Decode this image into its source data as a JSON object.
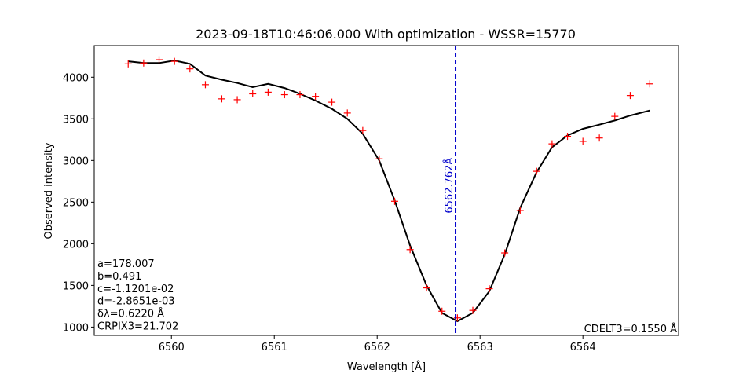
{
  "chart_data": {
    "type": "line",
    "title": "2023-09-18T10:46:06.000 With optimization - WSSR=15770",
    "xlabel": "Wavelength [Å]",
    "ylabel": "Observed intensity",
    "xlim": [
      6559.25,
      6564.93
    ],
    "ylim": [
      900,
      4380
    ],
    "x_ticks": [
      6560,
      6561,
      6562,
      6563,
      6564
    ],
    "y_ticks": [
      1000,
      1500,
      2000,
      2500,
      3000,
      3500,
      4000
    ],
    "grid": false,
    "series": [
      {
        "kind": "line",
        "color": "#000000",
        "x": [
          6559.58,
          6559.73,
          6559.88,
          6560.03,
          6560.18,
          6560.33,
          6560.49,
          6560.64,
          6560.79,
          6560.94,
          6561.1,
          6561.25,
          6561.4,
          6561.56,
          6561.71,
          6561.86,
          6562.02,
          6562.17,
          6562.32,
          6562.48,
          6562.63,
          6562.78,
          6562.93,
          6563.09,
          6563.24,
          6563.39,
          6563.55,
          6563.7,
          6563.85,
          6564.0,
          6564.16,
          6564.31,
          6564.46,
          6564.65
        ],
        "y": [
          4190,
          4170,
          4170,
          4200,
          4160,
          4020,
          3970,
          3930,
          3880,
          3920,
          3870,
          3800,
          3720,
          3620,
          3500,
          3320,
          3000,
          2520,
          1980,
          1500,
          1170,
          1070,
          1170,
          1430,
          1870,
          2430,
          2860,
          3160,
          3300,
          3380,
          3430,
          3480,
          3540,
          3600
        ]
      },
      {
        "kind": "marker",
        "marker": "+",
        "color": "#ff0000",
        "x": [
          6559.58,
          6559.73,
          6559.88,
          6560.03,
          6560.18,
          6560.33,
          6560.49,
          6560.64,
          6560.79,
          6560.94,
          6561.1,
          6561.25,
          6561.4,
          6561.56,
          6561.71,
          6561.86,
          6562.02,
          6562.17,
          6562.32,
          6562.48,
          6562.63,
          6562.78,
          6562.93,
          6563.09,
          6563.24,
          6563.39,
          6563.55,
          6563.7,
          6563.85,
          6564.0,
          6564.16,
          6564.31,
          6564.46,
          6564.65
        ],
        "y": [
          4160,
          4170,
          4210,
          4190,
          4100,
          3910,
          3740,
          3730,
          3800,
          3820,
          3790,
          3790,
          3770,
          3700,
          3570,
          3360,
          3020,
          2510,
          1930,
          1470,
          1190,
          1110,
          1200,
          1460,
          1890,
          2400,
          2870,
          3200,
          3290,
          3230,
          3270,
          3530,
          3780,
          3920
        ]
      }
    ],
    "vline": {
      "x": 6562.762,
      "color": "#0000cc",
      "style": "dashed",
      "label": "6562.762Å"
    },
    "annotations": {
      "params": [
        "a=178.007",
        "b=0.491",
        "c=-1.1201e-02",
        "d=-2.8651e-03",
        "δλ=0.6220 Å",
        "CRPIX3=21.702"
      ],
      "cdelt": "CDELT3=0.1550 Å"
    }
  }
}
